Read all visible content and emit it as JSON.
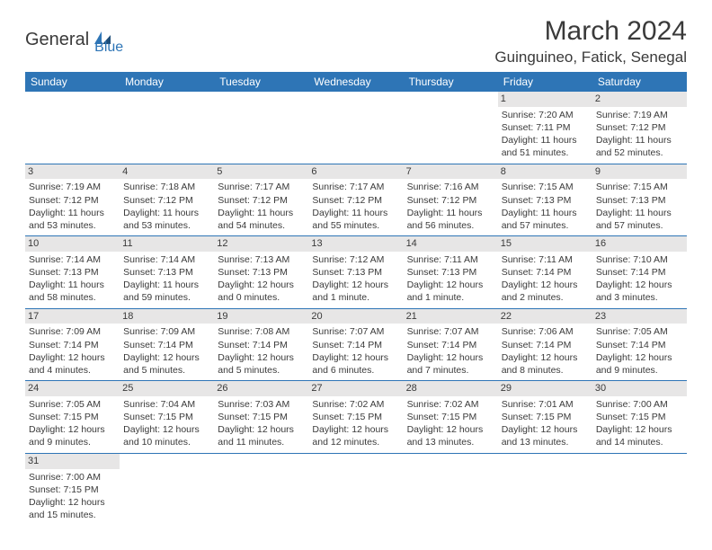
{
  "logo": {
    "text1": "General",
    "text2": "Blue"
  },
  "title": "March 2024",
  "location": "Guinguineo, Fatick, Senegal",
  "colors": {
    "header_bg": "#2e75b6",
    "header_fg": "#ffffff",
    "daynum_bg": "#e7e6e6",
    "text": "#3a3a3a",
    "border": "#2e75b6"
  },
  "fonts": {
    "title_size": 30,
    "location_size": 17,
    "header_size": 12,
    "cell_size": 10.5
  },
  "weekdays": [
    "Sunday",
    "Monday",
    "Tuesday",
    "Wednesday",
    "Thursday",
    "Friday",
    "Saturday"
  ],
  "weeks": [
    [
      null,
      null,
      null,
      null,
      null,
      {
        "day": "1",
        "sunrise": "Sunrise: 7:20 AM",
        "sunset": "Sunset: 7:11 PM",
        "daylight1": "Daylight: 11 hours",
        "daylight2": "and 51 minutes."
      },
      {
        "day": "2",
        "sunrise": "Sunrise: 7:19 AM",
        "sunset": "Sunset: 7:12 PM",
        "daylight1": "Daylight: 11 hours",
        "daylight2": "and 52 minutes."
      }
    ],
    [
      {
        "day": "3",
        "sunrise": "Sunrise: 7:19 AM",
        "sunset": "Sunset: 7:12 PM",
        "daylight1": "Daylight: 11 hours",
        "daylight2": "and 53 minutes."
      },
      {
        "day": "4",
        "sunrise": "Sunrise: 7:18 AM",
        "sunset": "Sunset: 7:12 PM",
        "daylight1": "Daylight: 11 hours",
        "daylight2": "and 53 minutes."
      },
      {
        "day": "5",
        "sunrise": "Sunrise: 7:17 AM",
        "sunset": "Sunset: 7:12 PM",
        "daylight1": "Daylight: 11 hours",
        "daylight2": "and 54 minutes."
      },
      {
        "day": "6",
        "sunrise": "Sunrise: 7:17 AM",
        "sunset": "Sunset: 7:12 PM",
        "daylight1": "Daylight: 11 hours",
        "daylight2": "and 55 minutes."
      },
      {
        "day": "7",
        "sunrise": "Sunrise: 7:16 AM",
        "sunset": "Sunset: 7:12 PM",
        "daylight1": "Daylight: 11 hours",
        "daylight2": "and 56 minutes."
      },
      {
        "day": "8",
        "sunrise": "Sunrise: 7:15 AM",
        "sunset": "Sunset: 7:13 PM",
        "daylight1": "Daylight: 11 hours",
        "daylight2": "and 57 minutes."
      },
      {
        "day": "9",
        "sunrise": "Sunrise: 7:15 AM",
        "sunset": "Sunset: 7:13 PM",
        "daylight1": "Daylight: 11 hours",
        "daylight2": "and 57 minutes."
      }
    ],
    [
      {
        "day": "10",
        "sunrise": "Sunrise: 7:14 AM",
        "sunset": "Sunset: 7:13 PM",
        "daylight1": "Daylight: 11 hours",
        "daylight2": "and 58 minutes."
      },
      {
        "day": "11",
        "sunrise": "Sunrise: 7:14 AM",
        "sunset": "Sunset: 7:13 PM",
        "daylight1": "Daylight: 11 hours",
        "daylight2": "and 59 minutes."
      },
      {
        "day": "12",
        "sunrise": "Sunrise: 7:13 AM",
        "sunset": "Sunset: 7:13 PM",
        "daylight1": "Daylight: 12 hours",
        "daylight2": "and 0 minutes."
      },
      {
        "day": "13",
        "sunrise": "Sunrise: 7:12 AM",
        "sunset": "Sunset: 7:13 PM",
        "daylight1": "Daylight: 12 hours",
        "daylight2": "and 1 minute."
      },
      {
        "day": "14",
        "sunrise": "Sunrise: 7:11 AM",
        "sunset": "Sunset: 7:13 PM",
        "daylight1": "Daylight: 12 hours",
        "daylight2": "and 1 minute."
      },
      {
        "day": "15",
        "sunrise": "Sunrise: 7:11 AM",
        "sunset": "Sunset: 7:14 PM",
        "daylight1": "Daylight: 12 hours",
        "daylight2": "and 2 minutes."
      },
      {
        "day": "16",
        "sunrise": "Sunrise: 7:10 AM",
        "sunset": "Sunset: 7:14 PM",
        "daylight1": "Daylight: 12 hours",
        "daylight2": "and 3 minutes."
      }
    ],
    [
      {
        "day": "17",
        "sunrise": "Sunrise: 7:09 AM",
        "sunset": "Sunset: 7:14 PM",
        "daylight1": "Daylight: 12 hours",
        "daylight2": "and 4 minutes."
      },
      {
        "day": "18",
        "sunrise": "Sunrise: 7:09 AM",
        "sunset": "Sunset: 7:14 PM",
        "daylight1": "Daylight: 12 hours",
        "daylight2": "and 5 minutes."
      },
      {
        "day": "19",
        "sunrise": "Sunrise: 7:08 AM",
        "sunset": "Sunset: 7:14 PM",
        "daylight1": "Daylight: 12 hours",
        "daylight2": "and 5 minutes."
      },
      {
        "day": "20",
        "sunrise": "Sunrise: 7:07 AM",
        "sunset": "Sunset: 7:14 PM",
        "daylight1": "Daylight: 12 hours",
        "daylight2": "and 6 minutes."
      },
      {
        "day": "21",
        "sunrise": "Sunrise: 7:07 AM",
        "sunset": "Sunset: 7:14 PM",
        "daylight1": "Daylight: 12 hours",
        "daylight2": "and 7 minutes."
      },
      {
        "day": "22",
        "sunrise": "Sunrise: 7:06 AM",
        "sunset": "Sunset: 7:14 PM",
        "daylight1": "Daylight: 12 hours",
        "daylight2": "and 8 minutes."
      },
      {
        "day": "23",
        "sunrise": "Sunrise: 7:05 AM",
        "sunset": "Sunset: 7:14 PM",
        "daylight1": "Daylight: 12 hours",
        "daylight2": "and 9 minutes."
      }
    ],
    [
      {
        "day": "24",
        "sunrise": "Sunrise: 7:05 AM",
        "sunset": "Sunset: 7:15 PM",
        "daylight1": "Daylight: 12 hours",
        "daylight2": "and 9 minutes."
      },
      {
        "day": "25",
        "sunrise": "Sunrise: 7:04 AM",
        "sunset": "Sunset: 7:15 PM",
        "daylight1": "Daylight: 12 hours",
        "daylight2": "and 10 minutes."
      },
      {
        "day": "26",
        "sunrise": "Sunrise: 7:03 AM",
        "sunset": "Sunset: 7:15 PM",
        "daylight1": "Daylight: 12 hours",
        "daylight2": "and 11 minutes."
      },
      {
        "day": "27",
        "sunrise": "Sunrise: 7:02 AM",
        "sunset": "Sunset: 7:15 PM",
        "daylight1": "Daylight: 12 hours",
        "daylight2": "and 12 minutes."
      },
      {
        "day": "28",
        "sunrise": "Sunrise: 7:02 AM",
        "sunset": "Sunset: 7:15 PM",
        "daylight1": "Daylight: 12 hours",
        "daylight2": "and 13 minutes."
      },
      {
        "day": "29",
        "sunrise": "Sunrise: 7:01 AM",
        "sunset": "Sunset: 7:15 PM",
        "daylight1": "Daylight: 12 hours",
        "daylight2": "and 13 minutes."
      },
      {
        "day": "30",
        "sunrise": "Sunrise: 7:00 AM",
        "sunset": "Sunset: 7:15 PM",
        "daylight1": "Daylight: 12 hours",
        "daylight2": "and 14 minutes."
      }
    ],
    [
      {
        "day": "31",
        "sunrise": "Sunrise: 7:00 AM",
        "sunset": "Sunset: 7:15 PM",
        "daylight1": "Daylight: 12 hours",
        "daylight2": "and 15 minutes."
      },
      null,
      null,
      null,
      null,
      null,
      null
    ]
  ]
}
